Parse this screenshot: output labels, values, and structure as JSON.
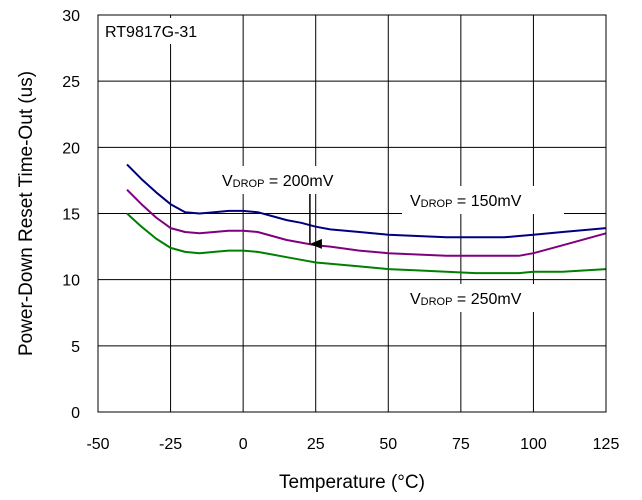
{
  "chart_data": {
    "type": "line",
    "title": "RT9817G-31",
    "xlabel": "Temperature (°C)",
    "ylabel": "Power-Down Reset Time-Out (us)",
    "xlim": [
      -50,
      125
    ],
    "ylim": [
      0,
      30
    ],
    "xticks": [
      -50,
      -25,
      0,
      25,
      50,
      75,
      100,
      125
    ],
    "yticks": [
      0,
      5,
      10,
      15,
      20,
      25,
      30
    ],
    "xtick_labels": [
      "-50",
      "-25",
      "0",
      "25",
      "50",
      "75",
      "100",
      "125"
    ],
    "ytick_labels": [
      "0",
      "5",
      "10",
      "15",
      "20",
      "25",
      "30"
    ],
    "grid": true,
    "legend": "none",
    "series": [
      {
        "name": "VDROP = 150mV",
        "color": "#000080",
        "points": [
          [
            -40,
            18.7
          ],
          [
            -35,
            17.6
          ],
          [
            -30,
            16.6
          ],
          [
            -25,
            15.7
          ],
          [
            -20,
            15.1
          ],
          [
            -15,
            15.0
          ],
          [
            -10,
            15.1
          ],
          [
            -5,
            15.2
          ],
          [
            0,
            15.2
          ],
          [
            5,
            15.1
          ],
          [
            10,
            14.8
          ],
          [
            15,
            14.5
          ],
          [
            20,
            14.3
          ],
          [
            25,
            14.0
          ],
          [
            30,
            13.8
          ],
          [
            40,
            13.6
          ],
          [
            50,
            13.4
          ],
          [
            60,
            13.3
          ],
          [
            70,
            13.2
          ],
          [
            80,
            13.2
          ],
          [
            90,
            13.2
          ],
          [
            95,
            13.3
          ],
          [
            100,
            13.4
          ],
          [
            110,
            13.6
          ],
          [
            125,
            13.9
          ]
        ]
      },
      {
        "name": "VDROP = 200mV",
        "color": "#800080",
        "points": [
          [
            -40,
            16.8
          ],
          [
            -35,
            15.7
          ],
          [
            -30,
            14.7
          ],
          [
            -25,
            13.9
          ],
          [
            -20,
            13.6
          ],
          [
            -15,
            13.5
          ],
          [
            -10,
            13.6
          ],
          [
            -5,
            13.7
          ],
          [
            0,
            13.7
          ],
          [
            5,
            13.6
          ],
          [
            10,
            13.3
          ],
          [
            15,
            13.0
          ],
          [
            20,
            12.8
          ],
          [
            25,
            12.6
          ],
          [
            30,
            12.5
          ],
          [
            40,
            12.2
          ],
          [
            50,
            12.0
          ],
          [
            60,
            11.9
          ],
          [
            70,
            11.8
          ],
          [
            80,
            11.8
          ],
          [
            90,
            11.8
          ],
          [
            95,
            11.8
          ],
          [
            100,
            12.0
          ],
          [
            110,
            12.6
          ],
          [
            125,
            13.5
          ]
        ]
      },
      {
        "name": "VDROP = 250mV",
        "color": "#008000",
        "points": [
          [
            -40,
            15.0
          ],
          [
            -35,
            14.0
          ],
          [
            -30,
            13.1
          ],
          [
            -25,
            12.4
          ],
          [
            -20,
            12.1
          ],
          [
            -15,
            12.0
          ],
          [
            -10,
            12.1
          ],
          [
            -5,
            12.2
          ],
          [
            0,
            12.2
          ],
          [
            5,
            12.1
          ],
          [
            10,
            11.9
          ],
          [
            15,
            11.7
          ],
          [
            20,
            11.5
          ],
          [
            25,
            11.3
          ],
          [
            30,
            11.2
          ],
          [
            40,
            11.0
          ],
          [
            50,
            10.8
          ],
          [
            60,
            10.7
          ],
          [
            70,
            10.6
          ],
          [
            80,
            10.5
          ],
          [
            90,
            10.5
          ],
          [
            95,
            10.5
          ],
          [
            100,
            10.6
          ],
          [
            110,
            10.6
          ],
          [
            125,
            10.8
          ]
        ]
      }
    ],
    "annotations": [
      {
        "id": "v200",
        "base": "V",
        "sub": "DROP",
        "rest": " = 200mV",
        "arrow_to": [
          23,
          12.7
        ]
      },
      {
        "id": "v150",
        "base": "V",
        "sub": "DROP",
        "rest": " = 150mV"
      },
      {
        "id": "v250",
        "base": "V",
        "sub": "DROP",
        "rest": " = 250mV"
      }
    ]
  }
}
